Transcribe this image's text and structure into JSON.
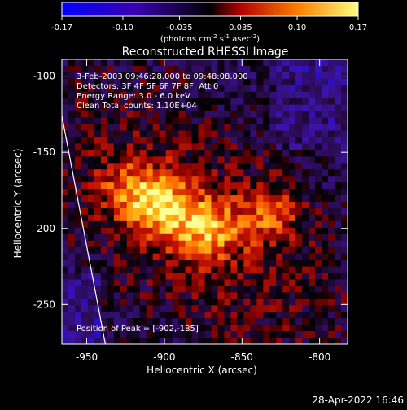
{
  "colorbar": {
    "ticks": [
      "-0.17",
      "-0.10",
      "-0.035",
      "0.035",
      "0.10",
      "0.17"
    ],
    "range": [
      -0.17,
      0.17
    ],
    "units_main": "(photons cm",
    "units_sup1": "-2",
    "units_mid1": " s",
    "units_sup2": "-1",
    "units_mid2": " asec",
    "units_sup3": "-2",
    "units_end": ")"
  },
  "chart_data": {
    "type": "heatmap",
    "title": "Reconstructed RHESSI Image",
    "xlabel": "Heliocentric X (arcsec)",
    "ylabel": "Heliocentric Y (arcsec)",
    "xlim": [
      -966,
      -782
    ],
    "ylim": [
      -276,
      -89
    ],
    "x_ticks": [
      "-950",
      "-900",
      "-850",
      "-800"
    ],
    "x_tick_values": [
      -950,
      -900,
      -850,
      -800
    ],
    "y_ticks": [
      "-100",
      "-150",
      "-200",
      "-250"
    ],
    "y_tick_values": [
      -100,
      -150,
      -200,
      -250
    ],
    "peak": [
      -902,
      -185
    ],
    "bright_sources": [
      {
        "x": -902,
        "y": -185,
        "intensity": 0.17
      },
      {
        "x": -873,
        "y": -200,
        "intensity": 0.15
      },
      {
        "x": -832,
        "y": -190,
        "intensity": 0.12
      },
      {
        "x": -925,
        "y": -175,
        "intensity": 0.1
      }
    ],
    "limb_line": [
      [
        -966,
        -126
      ],
      [
        -938,
        -276
      ]
    ],
    "annotations": [
      "3-Feb-2003 09:46:28.000 to 09:48:08.000",
      "Detectors: 3F 4F 5F 6F 7F 8F, Att 0",
      "Energy Range: 3.0 - 6.0 keV",
      "Clean     Total counts: 1.10E+04"
    ],
    "peak_label": "Position of Peak = [-902,-185]"
  },
  "footer": {
    "timestamp": "28-Apr-2022 16:46"
  }
}
